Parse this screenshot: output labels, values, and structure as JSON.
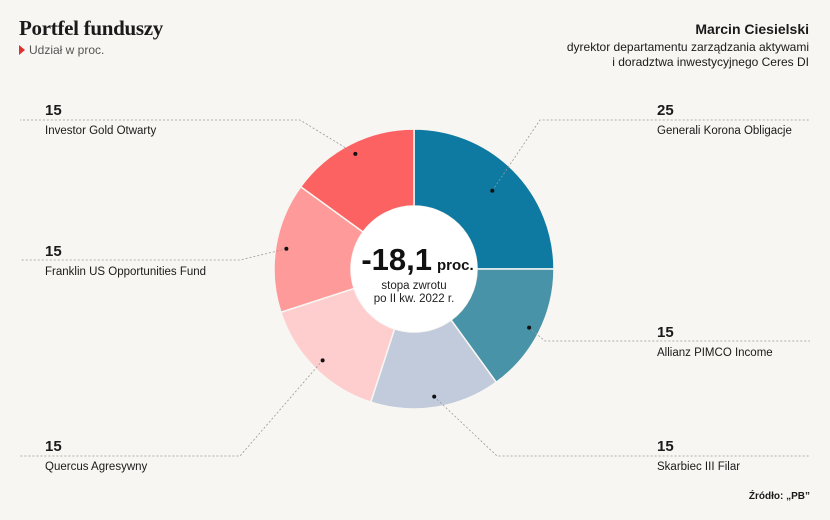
{
  "header": {
    "title": "Portfel funduszy",
    "subtitle": "Udział w proc."
  },
  "author": {
    "name": "Marcin Ciesielski",
    "role_line1": "dyrektor departamentu zarządzania aktywami",
    "role_line2": "i doradztwa inwestycyjnego Ceres DI"
  },
  "center": {
    "value": "-18,1",
    "unit": "proc.",
    "line1": "stopa zwrotu",
    "line2": "po II kw. 2022 r."
  },
  "source": "Źródło: „PB”",
  "chart_data": {
    "type": "pie",
    "donut": true,
    "title": "Portfel funduszy",
    "subtitle": "Udział w proc.",
    "slices": [
      {
        "label": "Generali Korona Obligacje",
        "value": 25,
        "value_label": "25",
        "color": "#0e7aa1"
      },
      {
        "label": "Allianz PIMCO Income",
        "value": 15,
        "value_label": "15",
        "color": "#4893a8"
      },
      {
        "label": "Skarbiec III Filar",
        "value": 15,
        "value_label": "15",
        "color": "#c2cbdc"
      },
      {
        "label": "Quercus Agresywny",
        "value": 15,
        "value_label": "15",
        "color": "#fecdcd"
      },
      {
        "label": "Franklin US Opportunities Fund",
        "value": 15,
        "value_label": "15",
        "color": "#fe9a9a"
      },
      {
        "label": "Investor Gold Otwarty",
        "value": 15,
        "value_label": "15",
        "color": "#fc6262"
      }
    ]
  }
}
